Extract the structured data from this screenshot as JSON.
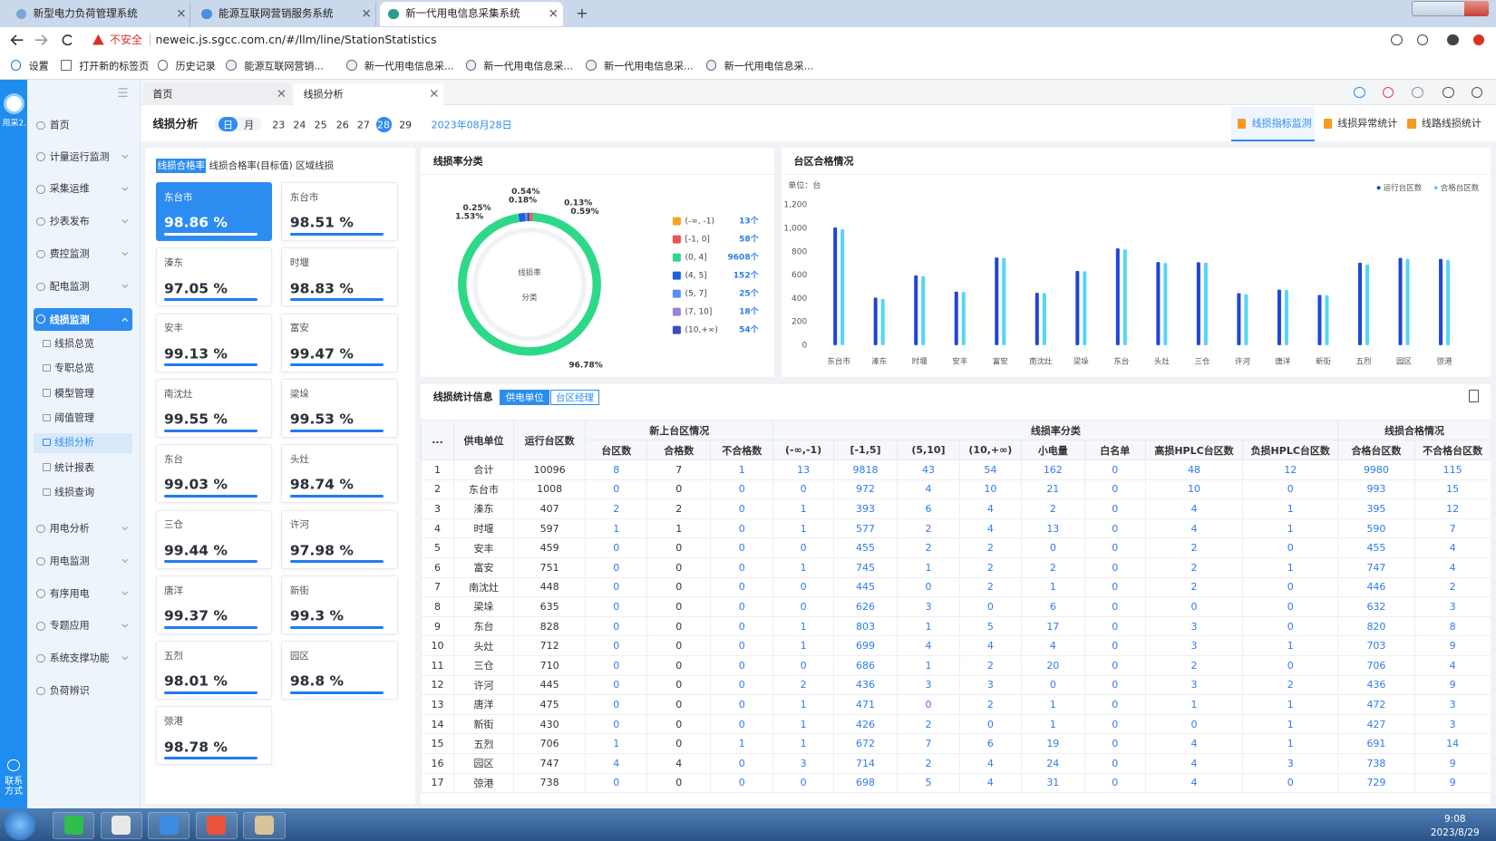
{
  "browser": {
    "tabs": [
      "新型电力负荷管理系统",
      "能源互联网营销服务系统",
      "新一代用电信息采集系统"
    ],
    "security": "不安全",
    "url": "neweic.js.sgcc.com.cn/#/llm/line/StationStatistics",
    "bookmarks": [
      "设置",
      "打开新的标签页",
      "历史记录",
      "能源互联网营销...",
      "新一代用电信息采...",
      "新一代用电信息采...",
      "新一代用电信息采...",
      "新一代用电信息采..."
    ]
  },
  "sidebar": {
    "logo": "用采2.",
    "menu": [
      "首页",
      "计量运行监测",
      "采集运维",
      "抄表发布",
      "费控监测",
      "配电监测"
    ],
    "active_group": "线损监测",
    "submenu": [
      "线损总览",
      "专职总览",
      "模型管理",
      "阈值管理",
      "线损分析",
      "统计报表",
      "线损查询"
    ],
    "menu_after": [
      "用电分析",
      "用电监测",
      "有序用电",
      "专题应用",
      "系统支撑功能",
      "负荷辨识"
    ],
    "contact": "联系方式"
  },
  "page_tabs": [
    "首页",
    "线损分析"
  ],
  "header": {
    "title": "线损分析",
    "modes": [
      "日",
      "月"
    ],
    "days": [
      "23",
      "24",
      "25",
      "26",
      "27",
      "28",
      "29"
    ],
    "date": "2023年08月28日",
    "views": [
      "线损指标监测",
      "线损异常统计",
      "线路线损统计"
    ]
  },
  "cards": {
    "tabs": [
      "线损合格率",
      "线损合格率(目标值)",
      "区域线损"
    ],
    "items": [
      {
        "name": "东台市",
        "rate": "98.86 %"
      },
      {
        "name": "东台市",
        "rate": "98.51 %"
      },
      {
        "name": "溱东",
        "rate": "97.05 %"
      },
      {
        "name": "时堰",
        "rate": "98.83 %"
      },
      {
        "name": "安丰",
        "rate": "99.13 %"
      },
      {
        "name": "富安",
        "rate": "99.47 %"
      },
      {
        "name": "南沈灶",
        "rate": "99.55 %"
      },
      {
        "name": "梁垛",
        "rate": "99.53 %"
      },
      {
        "name": "东台",
        "rate": "99.03 %"
      },
      {
        "name": "头灶",
        "rate": "98.74 %"
      },
      {
        "name": "三仓",
        "rate": "99.44 %"
      },
      {
        "name": "许河",
        "rate": "97.98 %"
      },
      {
        "name": "唐洋",
        "rate": "99.37 %"
      },
      {
        "name": "新街",
        "rate": "99.3 %"
      },
      {
        "name": "五烈",
        "rate": "98.01 %"
      },
      {
        "name": "园区",
        "rate": "98.8 %"
      },
      {
        "name": "弶港",
        "rate": "98.78 %"
      }
    ]
  },
  "chart_data": [
    {
      "type": "pie",
      "title": "线损率分类",
      "center_labels": [
        "线损率",
        "分类"
      ],
      "categories": [
        "(-∞, -1)",
        "[-1, 0]",
        "(0, 4]",
        "(4, 5]",
        "(5, 7]",
        "(7, 10]",
        "(10,+∞)"
      ],
      "values": [
        13,
        58,
        9608,
        152,
        25,
        18,
        54
      ],
      "value_labels": [
        "13个",
        "58个",
        "9608个",
        "152个",
        "25个",
        "18个",
        "54个"
      ],
      "percent_labels": [
        "0.13%",
        "0.59%",
        "96.78%",
        "1.53%",
        "0.25%",
        "0.18%",
        "0.54%"
      ],
      "colors": [
        "#f5a623",
        "#f0504f",
        "#2ed889",
        "#1f5fe0",
        "#5b8ff9",
        "#9b82d9",
        "#3b4cc0"
      ]
    },
    {
      "type": "bar",
      "title": "台区合格情况",
      "unit_label": "单位：台",
      "categories": [
        "东台市",
        "溱东",
        "时堰",
        "安丰",
        "富安",
        "南沈灶",
        "梁垛",
        "东台",
        "头灶",
        "三仓",
        "许河",
        "唐洋",
        "新街",
        "五烈",
        "园区",
        "弶港"
      ],
      "series": [
        {
          "name": "运行台区数",
          "color": "#1f45d6",
          "values": [
            1008,
            407,
            597,
            459,
            751,
            448,
            635,
            828,
            712,
            710,
            445,
            475,
            430,
            706,
            747,
            738
          ]
        },
        {
          "name": "合格台区数",
          "color": "#55d6f7",
          "values": [
            993,
            395,
            590,
            455,
            747,
            446,
            632,
            820,
            703,
            706,
            436,
            472,
            427,
            691,
            738,
            729
          ]
        }
      ],
      "ylim": [
        0,
        1200
      ],
      "yticks": [
        0,
        200,
        400,
        600,
        800,
        {
          "value": 1000,
          "label": "1,000"
        },
        {
          "value": 1200,
          "label": "1,200"
        }
      ],
      "grid": false,
      "legend": "top-right"
    }
  ],
  "table": {
    "title": "线损统计信息",
    "toggles": [
      "供电单位",
      "台区经理"
    ],
    "headers": [
      "...",
      "供电单位",
      "运行台区数"
    ],
    "group_headers": [
      "新上台区情况",
      "线损率分类",
      "线损合格情况"
    ],
    "sub_headers": [
      "台区数",
      "合格数",
      "不合格数",
      "(-∞,-1)",
      "[-1,5]",
      "(5,10]",
      "(10,+∞)",
      "小电量",
      "白名单",
      "高损HPLC台区数",
      "负损HPLC台区数",
      "合格台区数",
      "不合格台区数"
    ],
    "rows": [
      [
        1,
        "合计",
        10096,
        8,
        7,
        1,
        13,
        9818,
        43,
        54,
        162,
        0,
        48,
        12,
        9980,
        115
      ],
      [
        2,
        "东台市",
        1008,
        0,
        0,
        0,
        0,
        972,
        4,
        10,
        21,
        0,
        10,
        0,
        993,
        15
      ],
      [
        3,
        "溱东",
        407,
        2,
        2,
        0,
        1,
        393,
        6,
        4,
        2,
        0,
        4,
        1,
        395,
        12
      ],
      [
        4,
        "时堰",
        597,
        1,
        1,
        0,
        1,
        577,
        2,
        4,
        13,
        0,
        4,
        1,
        590,
        7
      ],
      [
        5,
        "安丰",
        459,
        0,
        0,
        0,
        0,
        455,
        2,
        2,
        0,
        0,
        2,
        0,
        455,
        4
      ],
      [
        6,
        "富安",
        751,
        0,
        0,
        0,
        1,
        745,
        1,
        2,
        2,
        0,
        2,
        1,
        747,
        4
      ],
      [
        7,
        "南沈灶",
        448,
        0,
        0,
        0,
        0,
        445,
        0,
        2,
        1,
        0,
        2,
        0,
        446,
        2
      ],
      [
        8,
        "梁垛",
        635,
        0,
        0,
        0,
        0,
        626,
        3,
        0,
        6,
        0,
        0,
        0,
        632,
        3
      ],
      [
        9,
        "东台",
        828,
        0,
        0,
        0,
        1,
        803,
        1,
        5,
        17,
        0,
        3,
        0,
        820,
        8
      ],
      [
        10,
        "头灶",
        712,
        0,
        0,
        0,
        1,
        699,
        4,
        4,
        4,
        0,
        3,
        1,
        703,
        9
      ],
      [
        11,
        "三仓",
        710,
        0,
        0,
        0,
        0,
        686,
        1,
        2,
        20,
        0,
        2,
        0,
        706,
        4
      ],
      [
        12,
        "许河",
        445,
        0,
        0,
        0,
        2,
        436,
        3,
        3,
        0,
        0,
        3,
        2,
        436,
        9
      ],
      [
        13,
        "唐洋",
        475,
        0,
        0,
        0,
        1,
        471,
        0,
        2,
        1,
        0,
        1,
        1,
        472,
        3
      ],
      [
        14,
        "新街",
        430,
        0,
        0,
        0,
        1,
        426,
        2,
        0,
        1,
        0,
        0,
        1,
        427,
        3
      ],
      [
        15,
        "五烈",
        706,
        1,
        0,
        1,
        1,
        672,
        7,
        6,
        19,
        0,
        4,
        1,
        691,
        14
      ],
      [
        16,
        "园区",
        747,
        4,
        4,
        0,
        3,
        714,
        2,
        4,
        24,
        0,
        4,
        3,
        738,
        9
      ],
      [
        17,
        "弶港",
        738,
        0,
        0,
        0,
        0,
        698,
        5,
        4,
        31,
        0,
        4,
        0,
        729,
        9
      ]
    ]
  },
  "taskbar": {
    "time": "9:08",
    "date": "2023/8/29"
  }
}
